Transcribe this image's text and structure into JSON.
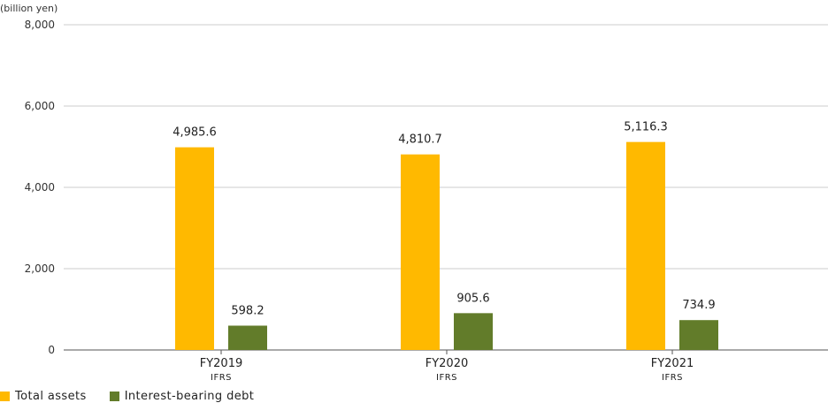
{
  "chart_data": {
    "type": "bar",
    "unit_label": "(billion yen)",
    "categories": [
      "FY2019",
      "FY2020",
      "FY2021"
    ],
    "category_sublabels": [
      "IFRS",
      "IFRS",
      "IFRS"
    ],
    "series": [
      {
        "name": "Total assets",
        "color": "#FFB900",
        "values": [
          4985.6,
          4810.7,
          5116.3
        ],
        "labels": [
          "4,985.6",
          "4,810.7",
          "5,116.3"
        ]
      },
      {
        "name": "Interest-bearing debt",
        "color": "#627C2A",
        "values": [
          598.2,
          905.6,
          734.9
        ],
        "labels": [
          "598.2",
          "905.6",
          "734.9"
        ]
      }
    ],
    "ylim": [
      0,
      8000
    ],
    "yticks": [
      0,
      2000,
      4000,
      6000,
      8000
    ],
    "ytick_labels": [
      "0",
      "2,000",
      "4,000",
      "6,000",
      "8,000"
    ],
    "grid": true,
    "legend_position": "bottom-left"
  }
}
